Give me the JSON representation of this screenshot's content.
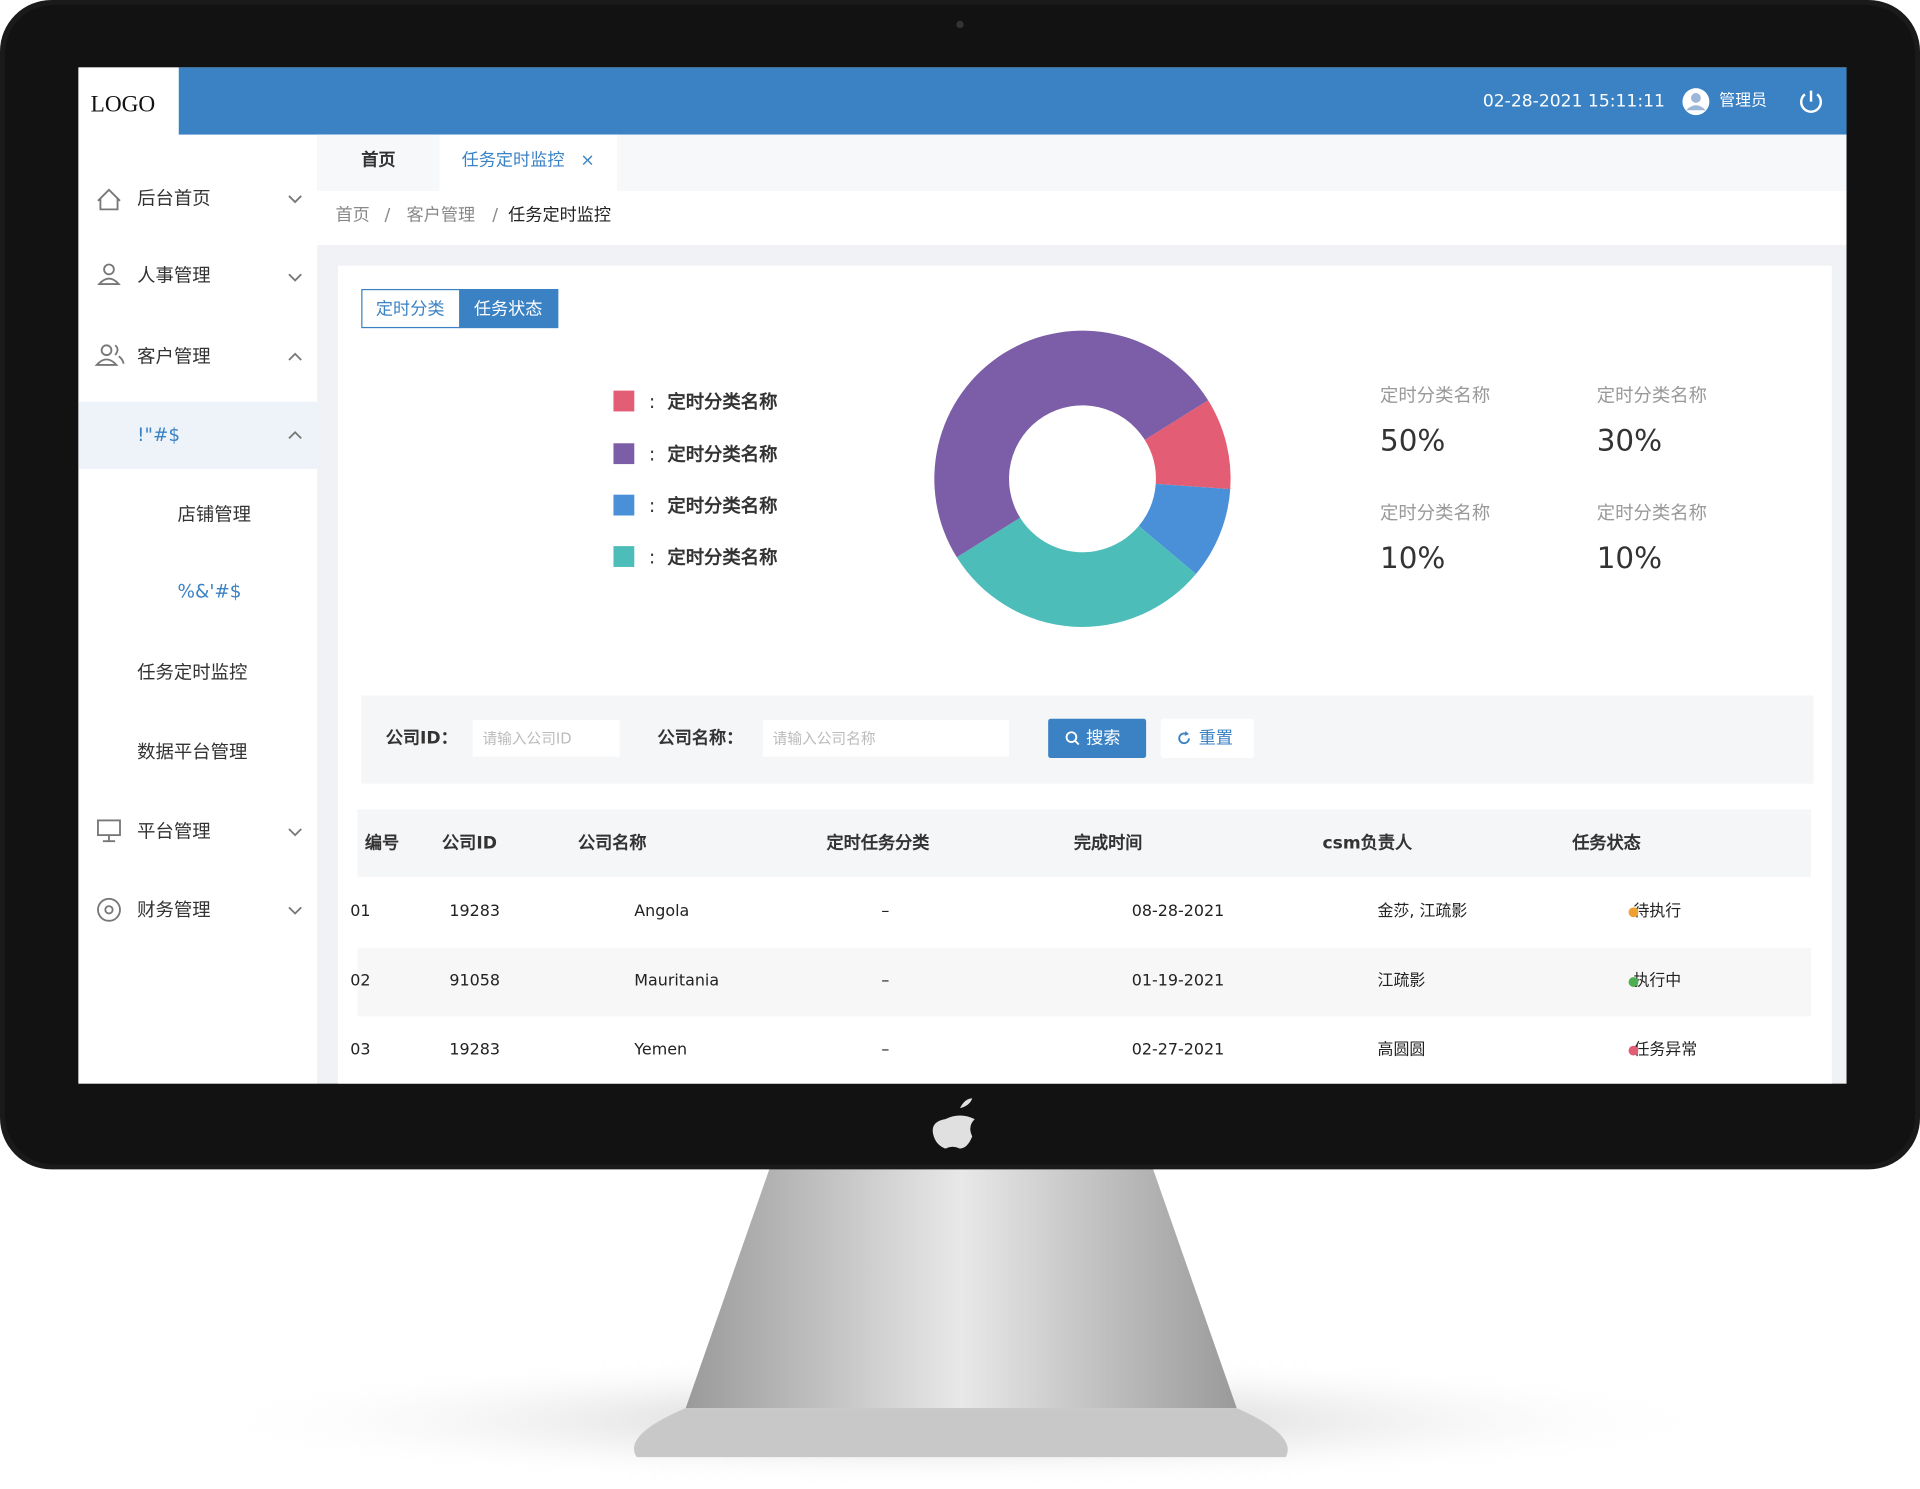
{
  "header": {
    "logo": "LOGO",
    "datetime": "02-28-2021 15:11:11",
    "user": "管理员"
  },
  "sidebar": {
    "items": [
      "后台首页",
      "人事管理",
      "客户管理"
    ],
    "group": "!\"#$",
    "subitems": [
      "店铺管理",
      "%&'#$"
    ],
    "items2": [
      "任务定时监控",
      "数据平台管理"
    ],
    "items3": [
      "平台管理",
      "财务管理"
    ]
  },
  "tabs": [
    "首页",
    "任务定时监控"
  ],
  "breadcrumb": [
    "首页",
    "客户管理",
    "任务定时监控"
  ],
  "toggle": [
    "定时分类",
    "任务状态"
  ],
  "chart_data": {
    "type": "pie",
    "categories": [
      "定时分类名称",
      "定时分类名称",
      "定时分类名称",
      "定时分类名称"
    ],
    "values": [
      10,
      50,
      10,
      30
    ],
    "colors": [
      "#e35d75",
      "#7b5ea7",
      "#4a90d9",
      "#4dbdb9"
    ]
  },
  "stats": [
    {
      "label": "定时分类名称",
      "value": "50%"
    },
    {
      "label": "定时分类名称",
      "value": "30%"
    },
    {
      "label": "定时分类名称",
      "value": "10%"
    },
    {
      "label": "定时分类名称",
      "value": "10%"
    }
  ],
  "search": {
    "fields": [
      {
        "label": "公司ID：",
        "placeholder": "请输入公司ID"
      },
      {
        "label": "公司名称：",
        "placeholder": "请输入公司名称"
      }
    ],
    "buttons": [
      "搜索",
      "重置"
    ]
  },
  "table": {
    "columns": [
      "编号",
      "公司ID",
      "公司名称",
      "定时任务分类",
      "完成时间",
      "csm负责人",
      "任务状态"
    ],
    "rows": [
      [
        "01",
        "19283",
        "Angola",
        "–",
        "08-28-2021",
        "金莎, 江疏影",
        "待执行"
      ],
      [
        "02",
        "91058",
        "Mauritania",
        "–",
        "01-19-2021",
        "江疏影",
        "执行中"
      ],
      [
        "03",
        "19283",
        "Yemen",
        "–",
        "02-27-2021",
        "高圆圆",
        "任务异常"
      ]
    ],
    "status_colors": [
      "#f0a030",
      "#4caf50",
      "#e35d75"
    ]
  }
}
